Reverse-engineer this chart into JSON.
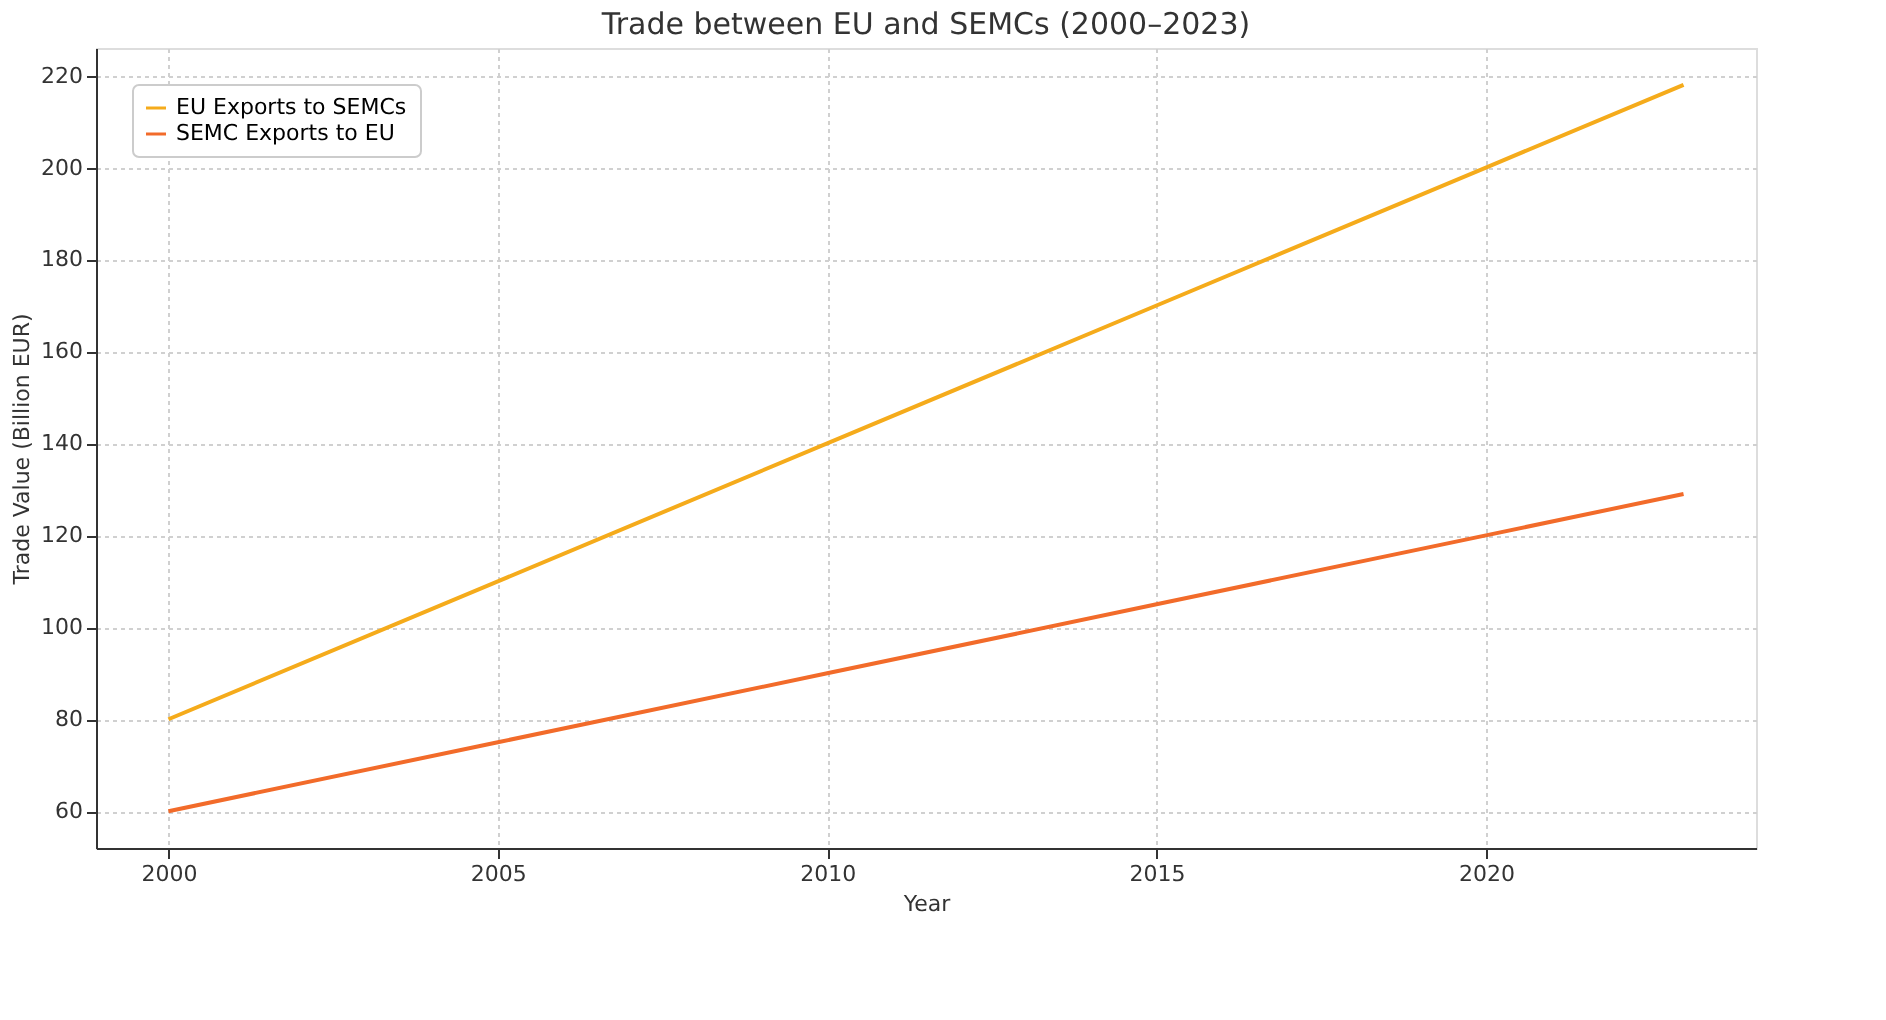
{
  "chart_data": {
    "type": "line",
    "title": "Trade between EU and SEMCs (2000–2023)",
    "xlabel": "Year",
    "ylabel": "Trade Value (Billion EUR)",
    "x": [
      2000,
      2005,
      2010,
      2015,
      2020,
      2023
    ],
    "series": [
      {
        "name": "EU Exports to SEMCs",
        "color": "#f5ab1b",
        "values": [
          80,
          110,
          140,
          170,
          200,
          218
        ]
      },
      {
        "name": "SEMC Exports to EU",
        "color": "#f26b2a",
        "values": [
          60,
          75,
          90,
          105,
          120,
          129
        ]
      }
    ],
    "xlim": [
      1998.9,
      2024.1
    ],
    "xticks": [
      2000,
      2005,
      2010,
      2015,
      2020
    ],
    "ylim": [
      52,
      226
    ],
    "yticks": [
      60,
      80,
      100,
      120,
      140,
      160,
      180,
      200,
      220
    ],
    "grid": true,
    "legend": "top left",
    "marker": "none",
    "line_style": "solid"
  }
}
